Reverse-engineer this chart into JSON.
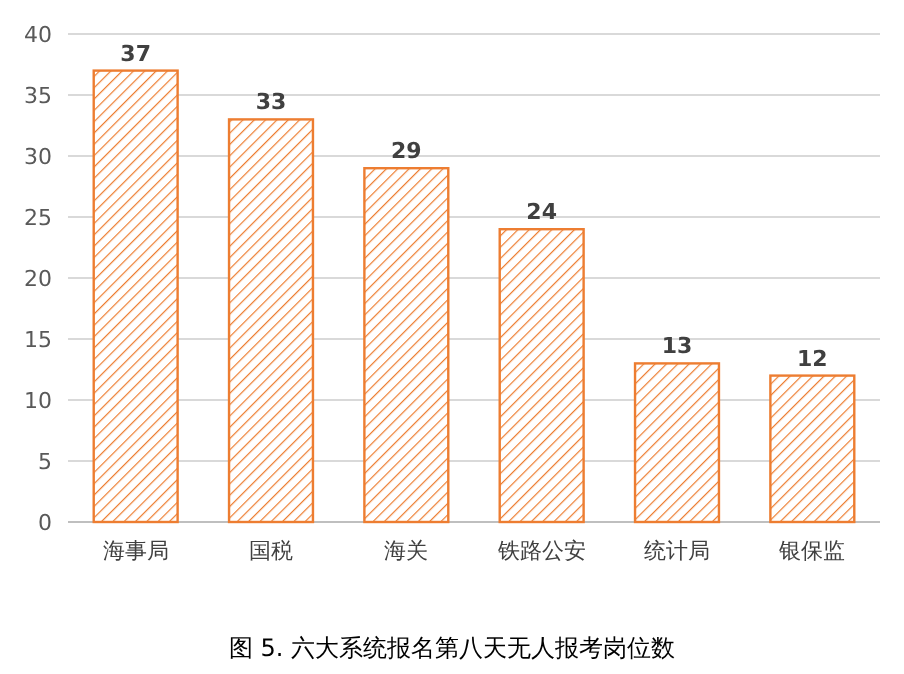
{
  "chart_data": {
    "type": "bar",
    "categories": [
      "海事局",
      "国税",
      "海关",
      "铁路公安",
      "统计局",
      "银保监"
    ],
    "values": [
      37,
      33,
      29,
      24,
      13,
      12
    ],
    "color": "#ed7d31",
    "ylim": [
      0,
      40
    ],
    "yticks": [
      0,
      5,
      10,
      15,
      20,
      25,
      30,
      35,
      40
    ],
    "grid": "y",
    "data_labels": true,
    "annotations": [
      "图 5. 六大系统报名第八天无人报考岗位数"
    ]
  }
}
